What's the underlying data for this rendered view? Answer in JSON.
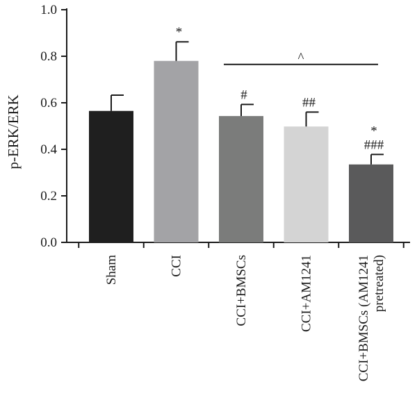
{
  "chart_data": {
    "type": "bar",
    "ylabel": "p-ERK/ERK",
    "ylim": [
      0,
      1.0
    ],
    "yticks": [
      "0.0",
      "0.2",
      "0.4",
      "0.6",
      "0.8",
      "1.0"
    ],
    "categories": [
      [
        "Sham"
      ],
      [
        "CCI"
      ],
      [
        "CCI+BMSCs"
      ],
      [
        "CCI+AM1241"
      ],
      [
        "CCI+BMSCs (AM1241",
        "pretreated)"
      ]
    ],
    "values": [
      0.565,
      0.78,
      0.543,
      0.498,
      0.335
    ],
    "errors": [
      0.068,
      0.082,
      0.05,
      0.062,
      0.043
    ],
    "colors": [
      "#1f1f1f",
      "#a3a3a6",
      "#7b7c7b",
      "#d4d4d4",
      "#5a5a5b"
    ],
    "annotations": [
      [
        "*"
      ],
      [
        "#"
      ],
      [
        "##"
      ],
      [
        "*",
        "###"
      ]
    ],
    "comparison": {
      "from_category": 2,
      "to_category": 4,
      "y": 0.765,
      "label": "^"
    },
    "grid": false,
    "legend": "none"
  }
}
